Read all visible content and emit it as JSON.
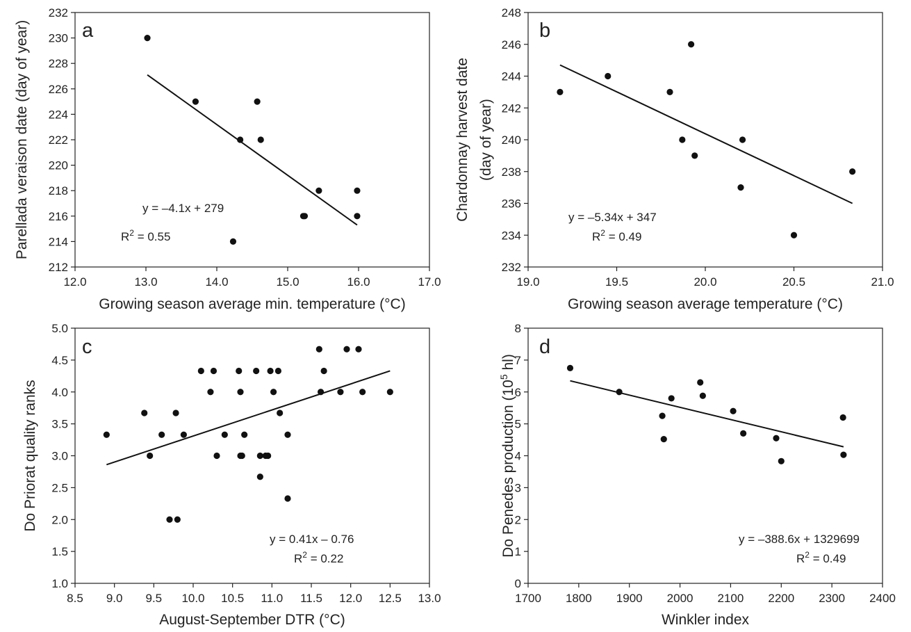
{
  "chart_data": [
    {
      "panel": "a",
      "type": "scatter",
      "xlabel": "Growing season average min. temperature (°C)",
      "ylabel": [
        "Parellada veraison date (day of year)"
      ],
      "xlim": [
        12.0,
        17.0
      ],
      "ylim": [
        212,
        232
      ],
      "xticks": [
        "12.0",
        "13.0",
        "14.0",
        "15.0",
        "16.0",
        "17.0"
      ],
      "yticks": [
        "212",
        "214",
        "216",
        "218",
        "220",
        "222",
        "224",
        "226",
        "228",
        "230",
        "232"
      ],
      "points": [
        [
          13.02,
          230
        ],
        [
          13.7,
          225
        ],
        [
          14.23,
          214
        ],
        [
          14.33,
          222
        ],
        [
          14.57,
          225
        ],
        [
          14.62,
          222
        ],
        [
          15.22,
          216
        ],
        [
          15.24,
          216
        ],
        [
          15.44,
          218
        ],
        [
          15.98,
          218
        ],
        [
          15.98,
          216
        ]
      ],
      "trendline": {
        "x": [
          13.02,
          15.98
        ],
        "y": [
          227.1,
          215.3
        ]
      },
      "equation": "y = –4.1x + 279",
      "r2_prefix": "R",
      "r2_sup": "2",
      "r2_value": " = 0.55"
    },
    {
      "panel": "b",
      "type": "scatter",
      "xlabel": "Growing season average temperature (°C)",
      "ylabel": [
        "Chardonnay harvest date",
        "(day of year)"
      ],
      "xlim": [
        19.0,
        21.0
      ],
      "ylim": [
        232,
        248
      ],
      "xticks": [
        "19.0",
        "19.5",
        "20.0",
        "20.5",
        "21.0"
      ],
      "yticks": [
        "232",
        "234",
        "236",
        "238",
        "240",
        "242",
        "244",
        "246",
        "248"
      ],
      "points": [
        [
          19.18,
          243
        ],
        [
          19.45,
          244
        ],
        [
          19.8,
          243
        ],
        [
          19.87,
          240
        ],
        [
          19.92,
          246
        ],
        [
          19.94,
          239
        ],
        [
          20.2,
          237
        ],
        [
          20.21,
          240
        ],
        [
          20.5,
          234
        ],
        [
          20.83,
          238
        ]
      ],
      "trendline": {
        "x": [
          19.18,
          20.83
        ],
        "y": [
          244.7,
          236.0
        ]
      },
      "equation": "y = –5.34x + 347",
      "r2_prefix": "R",
      "r2_sup": "2",
      "r2_value": " = 0.49"
    },
    {
      "panel": "c",
      "type": "scatter",
      "xlabel": "August-September DTR (°C)",
      "ylabel": [
        "Do Priorat quality ranks"
      ],
      "xlim": [
        8.5,
        13.0
      ],
      "ylim": [
        1.0,
        5.0
      ],
      "xticks": [
        "8.5",
        "9.0",
        "9.5",
        "10.0",
        "10.5",
        "11.0",
        "11.5",
        "12.0",
        "12.5",
        "13.0"
      ],
      "yticks": [
        "1.0",
        "1.5",
        "2.0",
        "2.5",
        "3.0",
        "3.5",
        "4.0",
        "4.5",
        "5.0"
      ],
      "points": [
        [
          8.9,
          3.33
        ],
        [
          9.38,
          3.67
        ],
        [
          9.45,
          3.0
        ],
        [
          9.6,
          3.33
        ],
        [
          9.7,
          2.0
        ],
        [
          9.78,
          3.67
        ],
        [
          9.8,
          2.0
        ],
        [
          9.88,
          3.33
        ],
        [
          10.1,
          4.33
        ],
        [
          10.22,
          4.0
        ],
        [
          10.26,
          4.33
        ],
        [
          10.3,
          3.0
        ],
        [
          10.4,
          3.33
        ],
        [
          10.58,
          4.33
        ],
        [
          10.6,
          3.0
        ],
        [
          10.6,
          4.0
        ],
        [
          10.62,
          3.0
        ],
        [
          10.65,
          3.33
        ],
        [
          10.8,
          4.33
        ],
        [
          10.85,
          3.0
        ],
        [
          10.85,
          2.67
        ],
        [
          10.92,
          3.0
        ],
        [
          10.95,
          3.0
        ],
        [
          10.98,
          4.33
        ],
        [
          11.02,
          4.0
        ],
        [
          11.08,
          4.33
        ],
        [
          11.1,
          3.67
        ],
        [
          11.2,
          3.33
        ],
        [
          11.2,
          2.33
        ],
        [
          11.6,
          4.67
        ],
        [
          11.62,
          4.0
        ],
        [
          11.66,
          4.33
        ],
        [
          11.87,
          4.0
        ],
        [
          11.95,
          4.67
        ],
        [
          12.1,
          4.67
        ],
        [
          12.15,
          4.0
        ],
        [
          12.5,
          4.0
        ]
      ],
      "trendline": {
        "x": [
          8.9,
          12.5
        ],
        "y": [
          2.86,
          4.33
        ]
      },
      "equation": "y = 0.41x – 0.76",
      "r2_prefix": "R",
      "r2_sup": "2",
      "r2_value": " = 0.22"
    },
    {
      "panel": "d",
      "type": "scatter",
      "xlabel": "Winkler index",
      "ylabel_prefix": "Do Penedes production (10",
      "ylabel_sup": "5",
      "ylabel_suffix": " hl)",
      "xlim": [
        1700,
        2400
      ],
      "ylim": [
        0,
        8
      ],
      "xticks": [
        "1700",
        "1800",
        "1900",
        "2000",
        "2100",
        "2200",
        "2300",
        "2400"
      ],
      "yticks": [
        "0",
        "1",
        "2",
        "3",
        "4",
        "5",
        "6",
        "7",
        "8"
      ],
      "points": [
        [
          1783,
          6.75
        ],
        [
          1880,
          6.0
        ],
        [
          1965,
          5.25
        ],
        [
          1968,
          4.52
        ],
        [
          1983,
          5.8
        ],
        [
          2040,
          6.3
        ],
        [
          2045,
          5.88
        ],
        [
          2105,
          5.4
        ],
        [
          2125,
          4.7
        ],
        [
          2190,
          4.55
        ],
        [
          2200,
          3.83
        ],
        [
          2322,
          5.2
        ],
        [
          2323,
          4.03
        ]
      ],
      "trendline": {
        "x": [
          1783,
          2323
        ],
        "y": [
          6.35,
          4.28
        ]
      },
      "equation": "y = –388.6x + 1329699",
      "r2_prefix": "R",
      "r2_sup": "2",
      "r2_value": " = 0.49"
    }
  ]
}
